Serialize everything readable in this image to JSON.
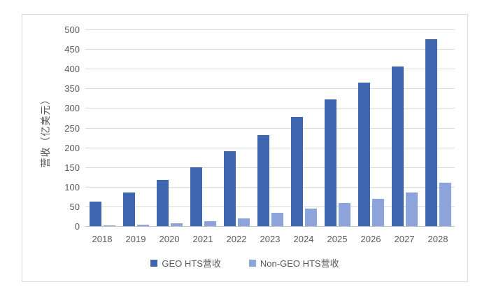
{
  "chart_data": {
    "type": "bar",
    "title": "",
    "xlabel": "",
    "ylabel": "营收（亿美元）",
    "categories": [
      "2018",
      "2019",
      "2020",
      "2021",
      "2022",
      "2023",
      "2024",
      "2025",
      "2026",
      "2027",
      "2028"
    ],
    "series": [
      {
        "name": "GEO HTS营收",
        "color": "#3e66ae",
        "values": [
          62,
          85,
          117,
          150,
          190,
          232,
          277,
          322,
          365,
          405,
          475
        ]
      },
      {
        "name": "Non-GEO HTS营收",
        "color": "#8da3db",
        "values": [
          2,
          3,
          7,
          13,
          20,
          33,
          45,
          58,
          70,
          86,
          110
        ]
      }
    ],
    "ylim": [
      0,
      500
    ],
    "ytick_step": 50,
    "grid": true,
    "legend_position": "bottom"
  },
  "colors": {
    "gridline": "#dadada",
    "axis_line": "#c0c0c0",
    "tick_text": "#595959",
    "frame_border": "#d9d9d9",
    "background": "#ffffff"
  }
}
